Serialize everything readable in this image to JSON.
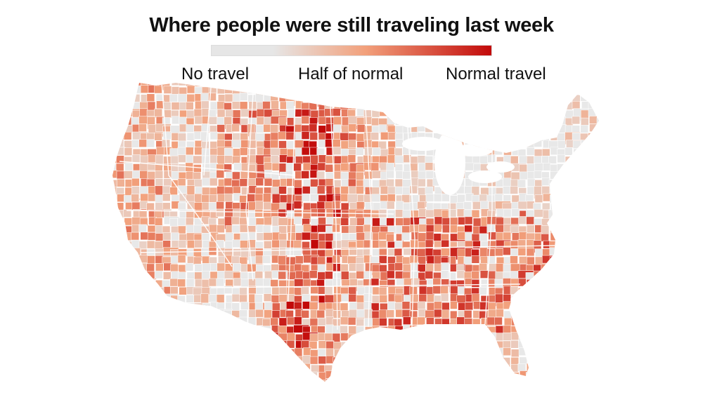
{
  "title": "Where people were still traveling last week",
  "legend": {
    "labels": [
      "No travel",
      "Half of normal",
      "Normal travel"
    ],
    "colors": [
      "#e6e6e6",
      "#f2a07b",
      "#c20a0a"
    ]
  },
  "map": {
    "region": "contiguous United States",
    "unit": "county",
    "no_data_color": "#e8e8e8",
    "border_color": "#ffffff"
  }
}
